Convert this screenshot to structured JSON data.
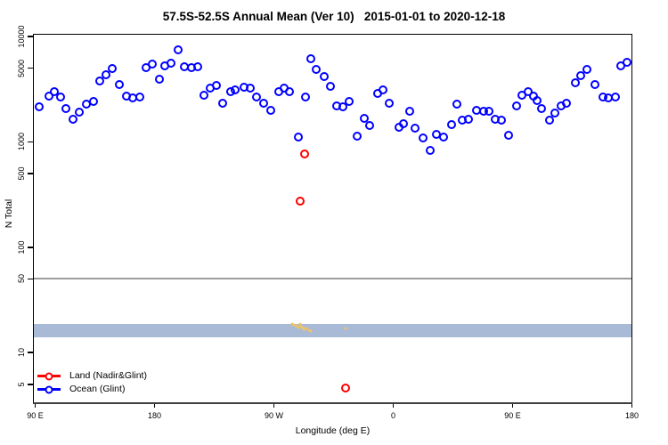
{
  "title": "57.5S-52.5S Annual Mean (Ver 10)   2015-01-01 to 2020-12-18",
  "axes": {
    "x_label": "Longitude (deg E)",
    "y_label": "N Total"
  },
  "legend": {
    "items": [
      {
        "label": "Land (Nadir&Glint)",
        "color": "#ff0000"
      },
      {
        "label": "Ocean (Glint)",
        "color": "#0000ff"
      }
    ]
  },
  "chart_data": {
    "type": "scatter",
    "title": "57.5S-52.5S Annual Mean (Ver 10)   2015-01-01 to 2020-12-18",
    "xlabel": "Longitude (deg E)",
    "ylabel": "N Total",
    "grid": "off",
    "legend_position": "bottom-left-inside",
    "x_axis": {
      "unit": "degrees east traveled from 90E",
      "domain": [
        89,
        541
      ],
      "ticks": [
        {
          "pos": 90,
          "label": "90 E"
        },
        {
          "pos": 180,
          "label": "180"
        },
        {
          "pos": 270,
          "label": "90 W"
        },
        {
          "pos": 360,
          "label": "0"
        },
        {
          "pos": 450,
          "label": "90 E"
        },
        {
          "pos": 540,
          "label": "180"
        }
      ]
    },
    "y_axis": {
      "scale": "log10",
      "domain": [
        3.3,
        10400
      ],
      "ticks": [
        10000,
        5000,
        1000,
        500,
        100,
        50,
        10,
        5
      ]
    },
    "hline": {
      "y": 50,
      "color": "#9c9c9c"
    },
    "band": {
      "y_from": 14,
      "y_to": 18.7,
      "color": "#a9bad6"
    },
    "series": [
      {
        "name": "Ocean (Glint)",
        "slug": "ocean-glint",
        "marker": "open-circle",
        "color": "#0000ff",
        "points": [
          [
            93.3,
            2150
          ],
          [
            100.7,
            2720
          ],
          [
            104.7,
            3010
          ],
          [
            109.4,
            2660
          ],
          [
            113.4,
            2070
          ],
          [
            118.7,
            1640
          ],
          [
            123.4,
            1910
          ],
          [
            128.8,
            2260
          ],
          [
            134.1,
            2410
          ],
          [
            138.8,
            3780
          ],
          [
            143.5,
            4340
          ],
          [
            148.2,
            4970
          ],
          [
            153.5,
            3500
          ],
          [
            158.9,
            2720
          ],
          [
            163.5,
            2610
          ],
          [
            168.9,
            2660
          ],
          [
            173.6,
            5070
          ],
          [
            178.3,
            5470
          ],
          [
            183.6,
            3930
          ],
          [
            187.6,
            5270
          ],
          [
            192.3,
            5580
          ],
          [
            197.6,
            7480
          ],
          [
            202.3,
            5170
          ],
          [
            207.7,
            5070
          ],
          [
            212.4,
            5170
          ],
          [
            217,
            2770
          ],
          [
            221.7,
            3240
          ],
          [
            226.4,
            3430
          ],
          [
            231.1,
            2310
          ],
          [
            237.1,
            3010
          ],
          [
            241.1,
            3130
          ],
          [
            247.8,
            3320
          ],
          [
            252.5,
            3240
          ],
          [
            257.2,
            2660
          ],
          [
            262.5,
            2310
          ],
          [
            267.9,
            1990
          ],
          [
            273.9,
            3010
          ],
          [
            277.9,
            3240
          ],
          [
            281.9,
            3010
          ],
          [
            288.6,
            1110
          ],
          [
            294,
            2660
          ],
          [
            298,
            6150
          ],
          [
            302,
            4870
          ],
          [
            308,
            4170
          ],
          [
            312.7,
            3380
          ],
          [
            317.4,
            2190
          ],
          [
            322,
            2150
          ],
          [
            326.7,
            2410
          ],
          [
            332.7,
            1130
          ],
          [
            338.1,
            1660
          ],
          [
            342.1,
            1430
          ],
          [
            348.1,
            2900
          ],
          [
            352.1,
            3130
          ],
          [
            356.8,
            2310
          ],
          [
            364.1,
            1380
          ],
          [
            367.5,
            1500
          ],
          [
            372.2,
            1960
          ],
          [
            376.2,
            1340
          ],
          [
            382.2,
            1090
          ],
          [
            388.2,
            830
          ],
          [
            392.9,
            1180
          ],
          [
            398.2,
            1110
          ],
          [
            404.3,
            1460
          ],
          [
            408.3,
            2280
          ],
          [
            412.3,
            1610
          ],
          [
            417,
            1640
          ],
          [
            423,
            1990
          ],
          [
            428.3,
            1950
          ],
          [
            432.3,
            1950
          ],
          [
            437,
            1640
          ],
          [
            441.7,
            1610
          ],
          [
            447,
            1150
          ],
          [
            453.1,
            2190
          ],
          [
            457.1,
            2770
          ],
          [
            461.8,
            3010
          ],
          [
            465.8,
            2720
          ],
          [
            468.4,
            2470
          ],
          [
            471.8,
            2070
          ],
          [
            477.8,
            1610
          ],
          [
            481.8,
            1880
          ],
          [
            486.5,
            2190
          ],
          [
            490.5,
            2310
          ],
          [
            497.2,
            3640
          ],
          [
            501.2,
            4250
          ],
          [
            505.9,
            4870
          ],
          [
            511.9,
            3500
          ],
          [
            517.9,
            2660
          ],
          [
            521.9,
            2610
          ],
          [
            527.3,
            2660
          ],
          [
            531.9,
            5270
          ],
          [
            536.6,
            5680
          ]
        ]
      },
      {
        "name": "Land (Nadir&Glint)",
        "slug": "land-nadir-glint",
        "marker": "open-circle",
        "color": "#ff0000",
        "points": [
          [
            289.9,
            275
          ],
          [
            293.3,
            770
          ],
          [
            324,
            4.6
          ]
        ]
      },
      {
        "name": "unlabeled-yellow-marks",
        "slug": "yellow-mark",
        "marker": "dot",
        "color": "#f0c364",
        "points": [
          [
            283.9,
            18.7
          ],
          [
            284.8,
            18.2
          ],
          [
            286.6,
            18
          ],
          [
            287.5,
            17.6
          ],
          [
            288.6,
            17.3
          ],
          [
            289.9,
            18.7
          ],
          [
            290.6,
            17.7
          ],
          [
            291.5,
            17.3
          ],
          [
            292.6,
            16.7
          ],
          [
            293.5,
            16.6
          ],
          [
            294.6,
            17
          ],
          [
            296.6,
            16.4
          ],
          [
            298,
            16.1
          ],
          [
            324,
            17
          ]
        ]
      }
    ]
  }
}
